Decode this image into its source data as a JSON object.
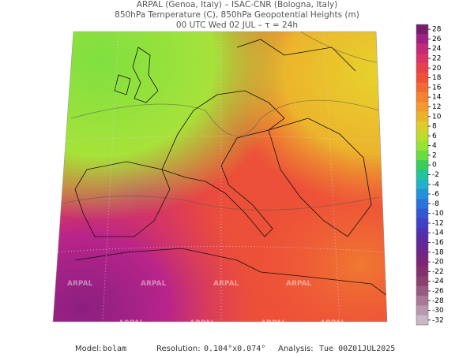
{
  "header": {
    "line1": "ARPAL (Genoa, Italy)  –  ISAC-CNR (Bologna, Italy)",
    "line2": "850hPa Temperature (C), 850hPa Geopotential Heights (m)",
    "line3": "00 UTC Wed 02 JUL  –  τ = 24h"
  },
  "colorbar": {
    "ticks": [
      28,
      26,
      24,
      22,
      20,
      18,
      16,
      14,
      12,
      10,
      8,
      6,
      4,
      2,
      0,
      -2,
      -4,
      -6,
      -8,
      -10,
      -12,
      -14,
      -16,
      -18,
      -20,
      -22,
      -24,
      -26,
      -28,
      -30,
      -32
    ],
    "colors": [
      "#7a1c6e",
      "#a02184",
      "#c02a78",
      "#d83564",
      "#e8404c",
      "#f05038",
      "#f26a32",
      "#f4822e",
      "#f49a2c",
      "#eab42a",
      "#dccc28",
      "#bcdc2c",
      "#94e434",
      "#68dc40",
      "#3ccc58",
      "#22c49c",
      "#20b0c8",
      "#2292d8",
      "#2a74dc",
      "#3458d4",
      "#4040c4",
      "#5030b0",
      "#60289c",
      "#702488",
      "#7c2478",
      "#84306c",
      "#8c4070",
      "#9a5a80",
      "#a87896",
      "#b898ac",
      "#c8b8c4"
    ]
  },
  "watermark": "ARPAL",
  "footer": {
    "model_label": "Model:",
    "model": "bolam",
    "resolution_label": "Resolution:",
    "resolution": "0.104°x0.074°",
    "analysis_label": "Analysis:",
    "analysis": "Tue 00Z01JUL2025"
  }
}
